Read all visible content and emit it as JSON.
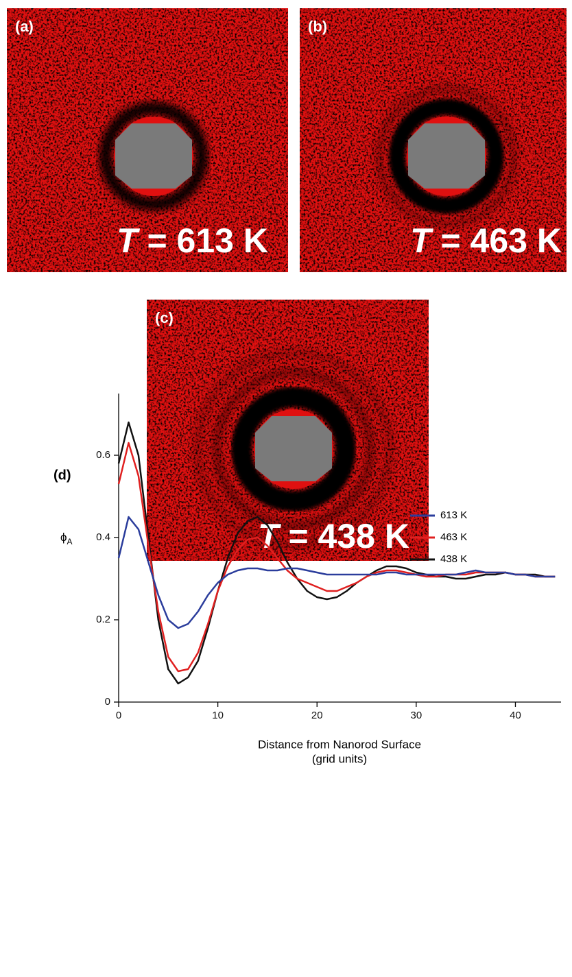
{
  "panels": [
    {
      "label": "(a)",
      "temperature_symbol": "T",
      "temperature_text": "= 613 K"
    },
    {
      "label": "(b)",
      "temperature_symbol": "T",
      "temperature_text": "= 463 K"
    },
    {
      "label": "(c)",
      "temperature_symbol": "T",
      "temperature_text": "= 438 K"
    }
  ],
  "chart_data": {
    "type": "line",
    "panel_label": "(d)",
    "xlabel": [
      "Distance from Nanorod Surface",
      "(grid units)"
    ],
    "ylabel": {
      "symbol": "ϕ",
      "subscript": "A"
    },
    "x": [
      0,
      1,
      2,
      3,
      4,
      5,
      6,
      7,
      8,
      9,
      10,
      11,
      12,
      13,
      14,
      15,
      16,
      17,
      18,
      19,
      20,
      21,
      22,
      23,
      24,
      25,
      26,
      27,
      28,
      29,
      30,
      31,
      32,
      33,
      34,
      35,
      36,
      37,
      38,
      39,
      40,
      41,
      42,
      43,
      44
    ],
    "series": [
      {
        "name": "613 K",
        "color": "#2b3d9c",
        "values": [
          0.35,
          0.45,
          0.42,
          0.34,
          0.26,
          0.2,
          0.18,
          0.19,
          0.22,
          0.26,
          0.29,
          0.31,
          0.32,
          0.325,
          0.325,
          0.32,
          0.32,
          0.325,
          0.325,
          0.32,
          0.315,
          0.31,
          0.31,
          0.31,
          0.31,
          0.31,
          0.31,
          0.315,
          0.315,
          0.31,
          0.31,
          0.31,
          0.31,
          0.31,
          0.31,
          0.315,
          0.32,
          0.315,
          0.315,
          0.315,
          0.31,
          0.31,
          0.305,
          0.305,
          0.305
        ]
      },
      {
        "name": "463 K",
        "color": "#e02020",
        "values": [
          0.53,
          0.63,
          0.55,
          0.38,
          0.22,
          0.11,
          0.075,
          0.08,
          0.12,
          0.19,
          0.27,
          0.33,
          0.37,
          0.395,
          0.4,
          0.38,
          0.35,
          0.32,
          0.3,
          0.29,
          0.28,
          0.27,
          0.27,
          0.28,
          0.29,
          0.305,
          0.315,
          0.32,
          0.32,
          0.315,
          0.31,
          0.305,
          0.305,
          0.31,
          0.31,
          0.31,
          0.315,
          0.315,
          0.315,
          0.315,
          0.31,
          0.31,
          0.305,
          0.305,
          0.305
        ]
      },
      {
        "name": "438 K",
        "color": "#111111",
        "values": [
          0.58,
          0.68,
          0.6,
          0.4,
          0.2,
          0.08,
          0.045,
          0.06,
          0.1,
          0.18,
          0.27,
          0.35,
          0.41,
          0.44,
          0.45,
          0.43,
          0.39,
          0.34,
          0.3,
          0.27,
          0.255,
          0.25,
          0.255,
          0.27,
          0.29,
          0.305,
          0.32,
          0.33,
          0.33,
          0.325,
          0.315,
          0.31,
          0.305,
          0.305,
          0.3,
          0.3,
          0.305,
          0.31,
          0.31,
          0.315,
          0.31,
          0.31,
          0.31,
          0.305,
          0.305
        ]
      }
    ],
    "xlim": [
      0,
      44.6
    ],
    "ylim": [
      0,
      0.75
    ],
    "xticks": [
      0,
      10,
      20,
      30,
      40
    ],
    "yticks": [
      0,
      0.2,
      0.4,
      0.6
    ],
    "legend": "upper right"
  }
}
